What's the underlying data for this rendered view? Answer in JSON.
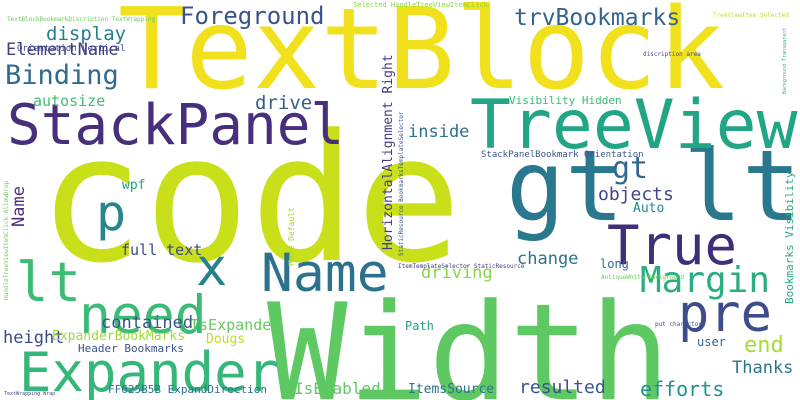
{
  "words": [
    {
      "id": "code",
      "text": "code",
      "color": "#c8df19"
    },
    {
      "id": "width",
      "text": "Width",
      "color": "#5ec962"
    },
    {
      "id": "textblock",
      "text": "TextBlock",
      "color": "#f0e11c"
    },
    {
      "id": "gt-lt",
      "text": "gt lt",
      "color": "#2a788e"
    },
    {
      "id": "treeview",
      "text": "TreeView",
      "color": "#21a585"
    },
    {
      "id": "stackpanel",
      "text": "StackPanel",
      "color": "#472f7d"
    },
    {
      "id": "expander",
      "text": "Expander",
      "color": "#35b779"
    },
    {
      "id": "name-large",
      "text": "Name",
      "color": "#2c718e"
    },
    {
      "id": "need",
      "text": "need",
      "color": "#3bbb75"
    },
    {
      "id": "true",
      "text": "True",
      "color": "#3f2f79"
    },
    {
      "id": "pre",
      "text": "pre",
      "color": "#3e4c8a"
    },
    {
      "id": "margin",
      "text": "Margin",
      "color": "#29af7f"
    },
    {
      "id": "x",
      "text": "x",
      "color": "#27808e"
    },
    {
      "id": "lt",
      "text": "lt",
      "color": "#3dbc74"
    },
    {
      "id": "p",
      "text": "p",
      "color": "#24878e"
    },
    {
      "id": "gt",
      "text": "gt",
      "color": "#31688e"
    },
    {
      "id": "foreground",
      "text": "Foreground",
      "color": "#3a538b"
    },
    {
      "id": "trvbookmarks",
      "text": "trvBookmarks",
      "color": "#32658e"
    },
    {
      "id": "binding",
      "text": "Binding",
      "color": "#306a8e"
    },
    {
      "id": "elementname",
      "text": "ElementName",
      "color": "#443a83"
    },
    {
      "id": "display",
      "text": "display",
      "color": "#277f8e"
    },
    {
      "id": "autosize",
      "text": "autosize",
      "color": "#3fbc73"
    },
    {
      "id": "drive",
      "text": "drive",
      "color": "#355f8d"
    },
    {
      "id": "inside",
      "text": "inside",
      "color": "#2d708e"
    },
    {
      "id": "contained",
      "text": "contained",
      "color": "#3a548c"
    },
    {
      "id": "full-text",
      "text": "full text",
      "color": "#3f4889"
    },
    {
      "id": "height",
      "text": "height",
      "color": "#3e4989"
    },
    {
      "id": "driving",
      "text": "driving",
      "color": "#89d548"
    },
    {
      "id": "change",
      "text": "change",
      "color": "#2c738e"
    },
    {
      "id": "objects",
      "text": "objects",
      "color": "#414487"
    },
    {
      "id": "auto",
      "text": "Auto",
      "color": "#23898e"
    },
    {
      "id": "end",
      "text": "end",
      "color": "#a8db34"
    },
    {
      "id": "thanks",
      "text": "Thanks",
      "color": "#2a768e"
    },
    {
      "id": "efforts",
      "text": "efforts",
      "color": "#21918c"
    },
    {
      "id": "resulted",
      "text": "resulted",
      "color": "#3b528b"
    },
    {
      "id": "itemssource",
      "text": "ItemsSource",
      "color": "#2c728e"
    },
    {
      "id": "isenabled",
      "text": "IsEnabled",
      "color": "#5ec962"
    },
    {
      "id": "isexpanded",
      "text": "IsExpanded",
      "color": "#65cb5e"
    },
    {
      "id": "expanderbookmarks",
      "text": "ExpanderBookMarks",
      "color": "#a0da39"
    },
    {
      "id": "dougs",
      "text": "Dougs",
      "color": "#c0df25"
    },
    {
      "id": "header-bookmarks",
      "text": "Header Bookmarks",
      "color": "#3a548c"
    },
    {
      "id": "ff625b5b",
      "text": "FF625B5B ExpandDirection",
      "color": "#2e6f8e"
    },
    {
      "id": "path",
      "text": "Path",
      "color": "#1fa088"
    },
    {
      "id": "user",
      "text": "user",
      "color": "#31678e"
    },
    {
      "id": "long",
      "text": "long",
      "color": "#2f6c8e"
    },
    {
      "id": "wpf",
      "text": "wpf",
      "color": "#1fa188"
    },
    {
      "id": "name-vertical",
      "text": "Name",
      "color": "#46317e"
    },
    {
      "id": "visibility-hidden",
      "text": "Visibility Hidden",
      "color": "#3aba76"
    },
    {
      "id": "stackpanelbookmark",
      "text": "StackPanelBookmark Orientation",
      "color": "#3b528b"
    },
    {
      "id": "horizontal-alignment-right",
      "text": "HorizontalAlignment Right",
      "color": "#443b84"
    },
    {
      "id": "bookmarks-visibility",
      "text": "Bookmarks Visibility",
      "color": "#25ac82"
    },
    {
      "id": "mode-default",
      "text": "Mode Default",
      "color": "#a0da39"
    },
    {
      "id": "orientation-vertical",
      "text": "Orientation Vertical",
      "color": "#3e4a89"
    },
    {
      "id": "textblockbookmark",
      "text": "TextBlockBookmarkDiscription TextWrapping",
      "color": "#6ccd5a"
    },
    {
      "id": "selected-handle",
      "text": "Selected HandleTreeViewItemClick",
      "color": "#8bd646"
    },
    {
      "id": "treeviewitem-selected",
      "text": "TreeViewItem Selected",
      "color": "#bddf26"
    },
    {
      "id": "discription-area",
      "text": "discription area",
      "color": "#3e4a89"
    },
    {
      "id": "background-transparent",
      "text": "Background Transparent",
      "color": "#31b57b"
    },
    {
      "id": "itemtemplateselector",
      "text": "ItemTemplateSelector StaticResource",
      "color": "#453882"
    },
    {
      "id": "antiquewhite-background",
      "text": "AntiqueWhite Background",
      "color": "#6ccd5a"
    },
    {
      "id": "put-characters",
      "text": "put charactors",
      "color": "#3b528b"
    },
    {
      "id": "textwrapping-wrap",
      "text": "TextWrapping Wrap",
      "color": "#3e4a89"
    },
    {
      "id": "handletreeviewitemclick",
      "text": "HandleTreeViewItemClick AllowDrop",
      "color": "#6ece58"
    },
    {
      "id": "staticresource-bookmarks",
      "text": "StaticResource BookmarksTemplateSelector",
      "color": "#3b528b"
    }
  ]
}
